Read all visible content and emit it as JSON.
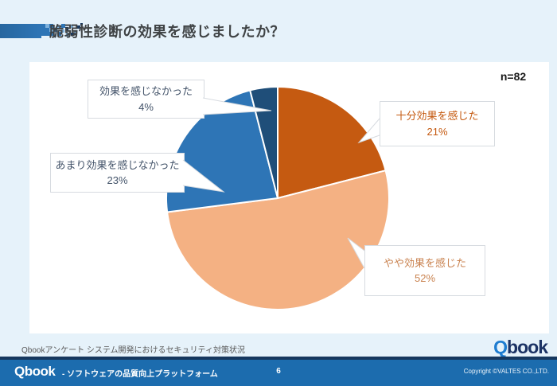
{
  "header": {
    "title": "脆弱性診断の効果を感じましたか？"
  },
  "chart": {
    "n_label": "n=82"
  },
  "chart_data": {
    "type": "pie",
    "title": "脆弱性診断の効果を感じましたか？",
    "sample_size_label": "n=82",
    "start_angle_deg": 0,
    "direction": "clockwise",
    "legend_position": "callout-labels",
    "slices": [
      {
        "label": "十分効果を感じた",
        "pct": 21,
        "color": "#c55a11",
        "label_color": "#c55a11"
      },
      {
        "label": "やや効果を感じた",
        "pct": 52,
        "color": "#f4b183",
        "label_color": "#c9824f"
      },
      {
        "label": "あまり効果を感じなかった",
        "pct": 23,
        "color": "#2e75b6",
        "label_color": "#44546a"
      },
      {
        "label": "効果を感じなかった",
        "pct": 4,
        "color": "#1f4e79",
        "label_color": "#44546a"
      }
    ]
  },
  "source_note": "Qbookアンケート システム開発におけるセキュリティ対策状況",
  "corner_logo": {
    "q": "Q",
    "rest": "book"
  },
  "footer": {
    "logo_q": "Q",
    "logo_rest": "book",
    "tagline": "- ソフトウェアの品質向上プラットフォーム",
    "page_number": "6",
    "copyright": "Copyright ©VALTES CO.,LTD."
  },
  "colors": {
    "slide_background": "#e6f2fa",
    "panel_background": "#ffffff",
    "footer_bar": "#1c6cae",
    "footer_top_line": "#16375e",
    "title_text": "#3f4345",
    "logo_q_blue": "#1e7cd0",
    "logo_book_navy": "#1b3264"
  }
}
